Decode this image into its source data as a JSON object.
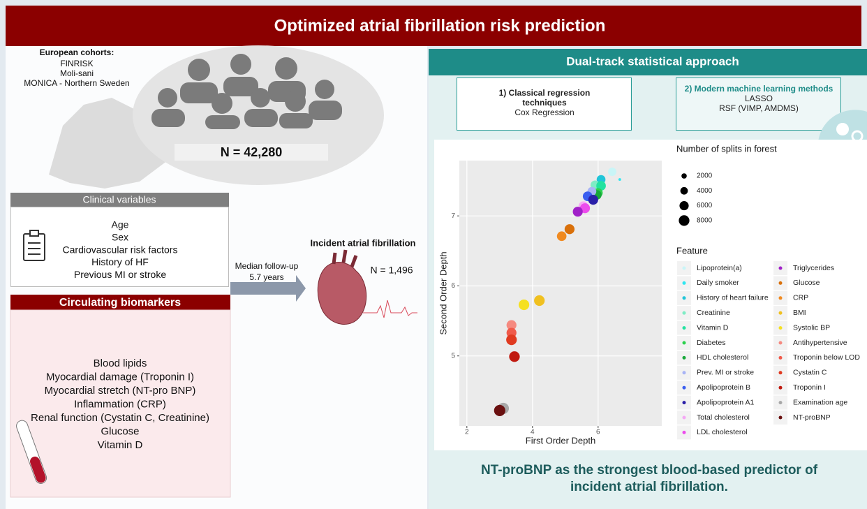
{
  "header": {
    "title": "Optimized atrial fibrillation risk prediction"
  },
  "cohorts": {
    "title": "European cohorts:",
    "items": [
      "FINRISK",
      "Moli-sani",
      "MONICA - Northern Sweden"
    ],
    "n": "N = 42,280"
  },
  "clinical": {
    "title": "Clinical variables",
    "items": [
      "Age",
      "Sex",
      "Cardiovascular risk factors",
      "History of HF",
      "Previous MI or stroke"
    ]
  },
  "biomarkers": {
    "title": "Circulating biomarkers",
    "items": [
      "Blood lipids",
      "Myocardial damage (Troponin I)",
      "Myocardial stretch (NT-pro BNP)",
      "Inflammation (CRP)",
      "Renal function (Cystatin C, Creatinine)",
      "Glucose",
      "Vitamin D"
    ]
  },
  "followup": {
    "label": "Median follow-up",
    "value": "5.7 years"
  },
  "outcome": {
    "title": "Incident atrial fibrillation",
    "n": "N = 1,496"
  },
  "approach": {
    "title": "Dual-track statistical approach",
    "tracks": [
      {
        "title": "1) Classical regression techniques",
        "methods": [
          "Cox Regression"
        ]
      },
      {
        "title": "2) Modern machine learning methods",
        "methods": [
          "LASSO",
          "RSF (VIMP, AMDMS)"
        ]
      }
    ]
  },
  "chart_data": {
    "type": "scatter",
    "x_label": "First Order Depth",
    "y_label": "Second Order Depth",
    "xlim": [
      1.77,
      7.94
    ],
    "ylim": [
      4.0,
      7.79
    ],
    "xticks": [
      2,
      4,
      6
    ],
    "yticks": [
      5,
      6,
      7
    ],
    "grid": true,
    "size_legend_title": "Number of splits in forest",
    "size_ticks": [
      2000,
      4000,
      6000,
      8000
    ],
    "color_legend_title": "Feature",
    "series": [
      {
        "name": "Lipoprotein(a)",
        "color": "#c9f5f7",
        "x": [
          6.43
        ],
        "values": [
          7.63
        ],
        "sizes": [
          5000
        ]
      },
      {
        "name": "Daily smoker",
        "color": "#2ee6f0",
        "x": [
          6.66
        ],
        "values": [
          7.52
        ],
        "sizes": [
          500
        ]
      },
      {
        "name": "History of heart failure",
        "color": "#20c5d8",
        "x": [
          6.09
        ],
        "values": [
          7.52
        ],
        "sizes": [
          5500
        ]
      },
      {
        "name": "Creatinine",
        "color": "#7fecc5",
        "x": [
          5.91
        ],
        "values": [
          7.44
        ],
        "sizes": [
          6000
        ]
      },
      {
        "name": "Vitamin D",
        "color": "#22e2a0",
        "x": [
          6.09
        ],
        "values": [
          7.43
        ],
        "sizes": [
          6500
        ]
      },
      {
        "name": "Diabetes",
        "color": "#2bd14c",
        "x": [
          6.0
        ],
        "values": [
          7.33
        ],
        "sizes": [
          6000
        ]
      },
      {
        "name": "HDL cholesterol",
        "color": "#18a83a",
        "x": [
          5.96
        ],
        "values": [
          7.3
        ],
        "sizes": [
          6500
        ]
      },
      {
        "name": "Prev. MI or stroke",
        "color": "#a8b4f5",
        "x": [
          5.81
        ],
        "values": [
          7.35
        ],
        "sizes": [
          5500
        ]
      },
      {
        "name": "Apolipoprotein B",
        "color": "#3a5ef0",
        "x": [
          5.68
        ],
        "values": [
          7.28
        ],
        "sizes": [
          6500
        ]
      },
      {
        "name": "Apolipoprotein A1",
        "color": "#2a1fa8",
        "x": [
          5.85
        ],
        "values": [
          7.23
        ],
        "sizes": [
          7000
        ]
      },
      {
        "name": "Total cholesterol",
        "color": "#f5a8f5",
        "x": [
          5.55
        ],
        "values": [
          7.14
        ],
        "sizes": [
          6500
        ]
      },
      {
        "name": "LDL cholesterol",
        "color": "#ec4cec",
        "x": [
          5.6
        ],
        "values": [
          7.11
        ],
        "sizes": [
          7000
        ]
      },
      {
        "name": "Triglycerides",
        "color": "#a020c8",
        "x": [
          5.38
        ],
        "values": [
          7.06
        ],
        "sizes": [
          7000
        ]
      },
      {
        "name": "Glucose",
        "color": "#d9700a",
        "x": [
          5.13
        ],
        "values": [
          6.81
        ],
        "sizes": [
          7000
        ]
      },
      {
        "name": "CRP",
        "color": "#f08a20",
        "x": [
          4.89
        ],
        "values": [
          6.71
        ],
        "sizes": [
          6500
        ]
      },
      {
        "name": "BMI",
        "color": "#f0c020",
        "x": [
          4.21
        ],
        "values": [
          5.79
        ],
        "sizes": [
          8000
        ]
      },
      {
        "name": "Systolic BP",
        "color": "#f5e020",
        "x": [
          3.74
        ],
        "values": [
          5.73
        ],
        "sizes": [
          8000
        ]
      },
      {
        "name": "Antihypertensive",
        "color": "#f58a80",
        "x": [
          3.36
        ],
        "values": [
          5.44
        ],
        "sizes": [
          7000
        ]
      },
      {
        "name": "Troponin below LOD",
        "color": "#f05a4a",
        "x": [
          3.36
        ],
        "values": [
          5.33
        ],
        "sizes": [
          7000
        ]
      },
      {
        "name": "Cystatin C",
        "color": "#e03a20",
        "x": [
          3.36
        ],
        "values": [
          5.23
        ],
        "sizes": [
          8000
        ]
      },
      {
        "name": "Troponin I",
        "color": "#c01a10",
        "x": [
          3.45
        ],
        "values": [
          4.99
        ],
        "sizes": [
          8000
        ]
      },
      {
        "name": "Examination age",
        "color": "#a8a8a8",
        "x": [
          3.11
        ],
        "values": [
          4.25
        ],
        "sizes": [
          9000
        ]
      },
      {
        "name": "NT-proBNP",
        "color": "#6a1010",
        "x": [
          3.0
        ],
        "values": [
          4.22
        ],
        "sizes": [
          9000
        ]
      }
    ]
  },
  "conclusion": "NT-proBNP as the strongest blood-based predictor of incident atrial fibrillation."
}
